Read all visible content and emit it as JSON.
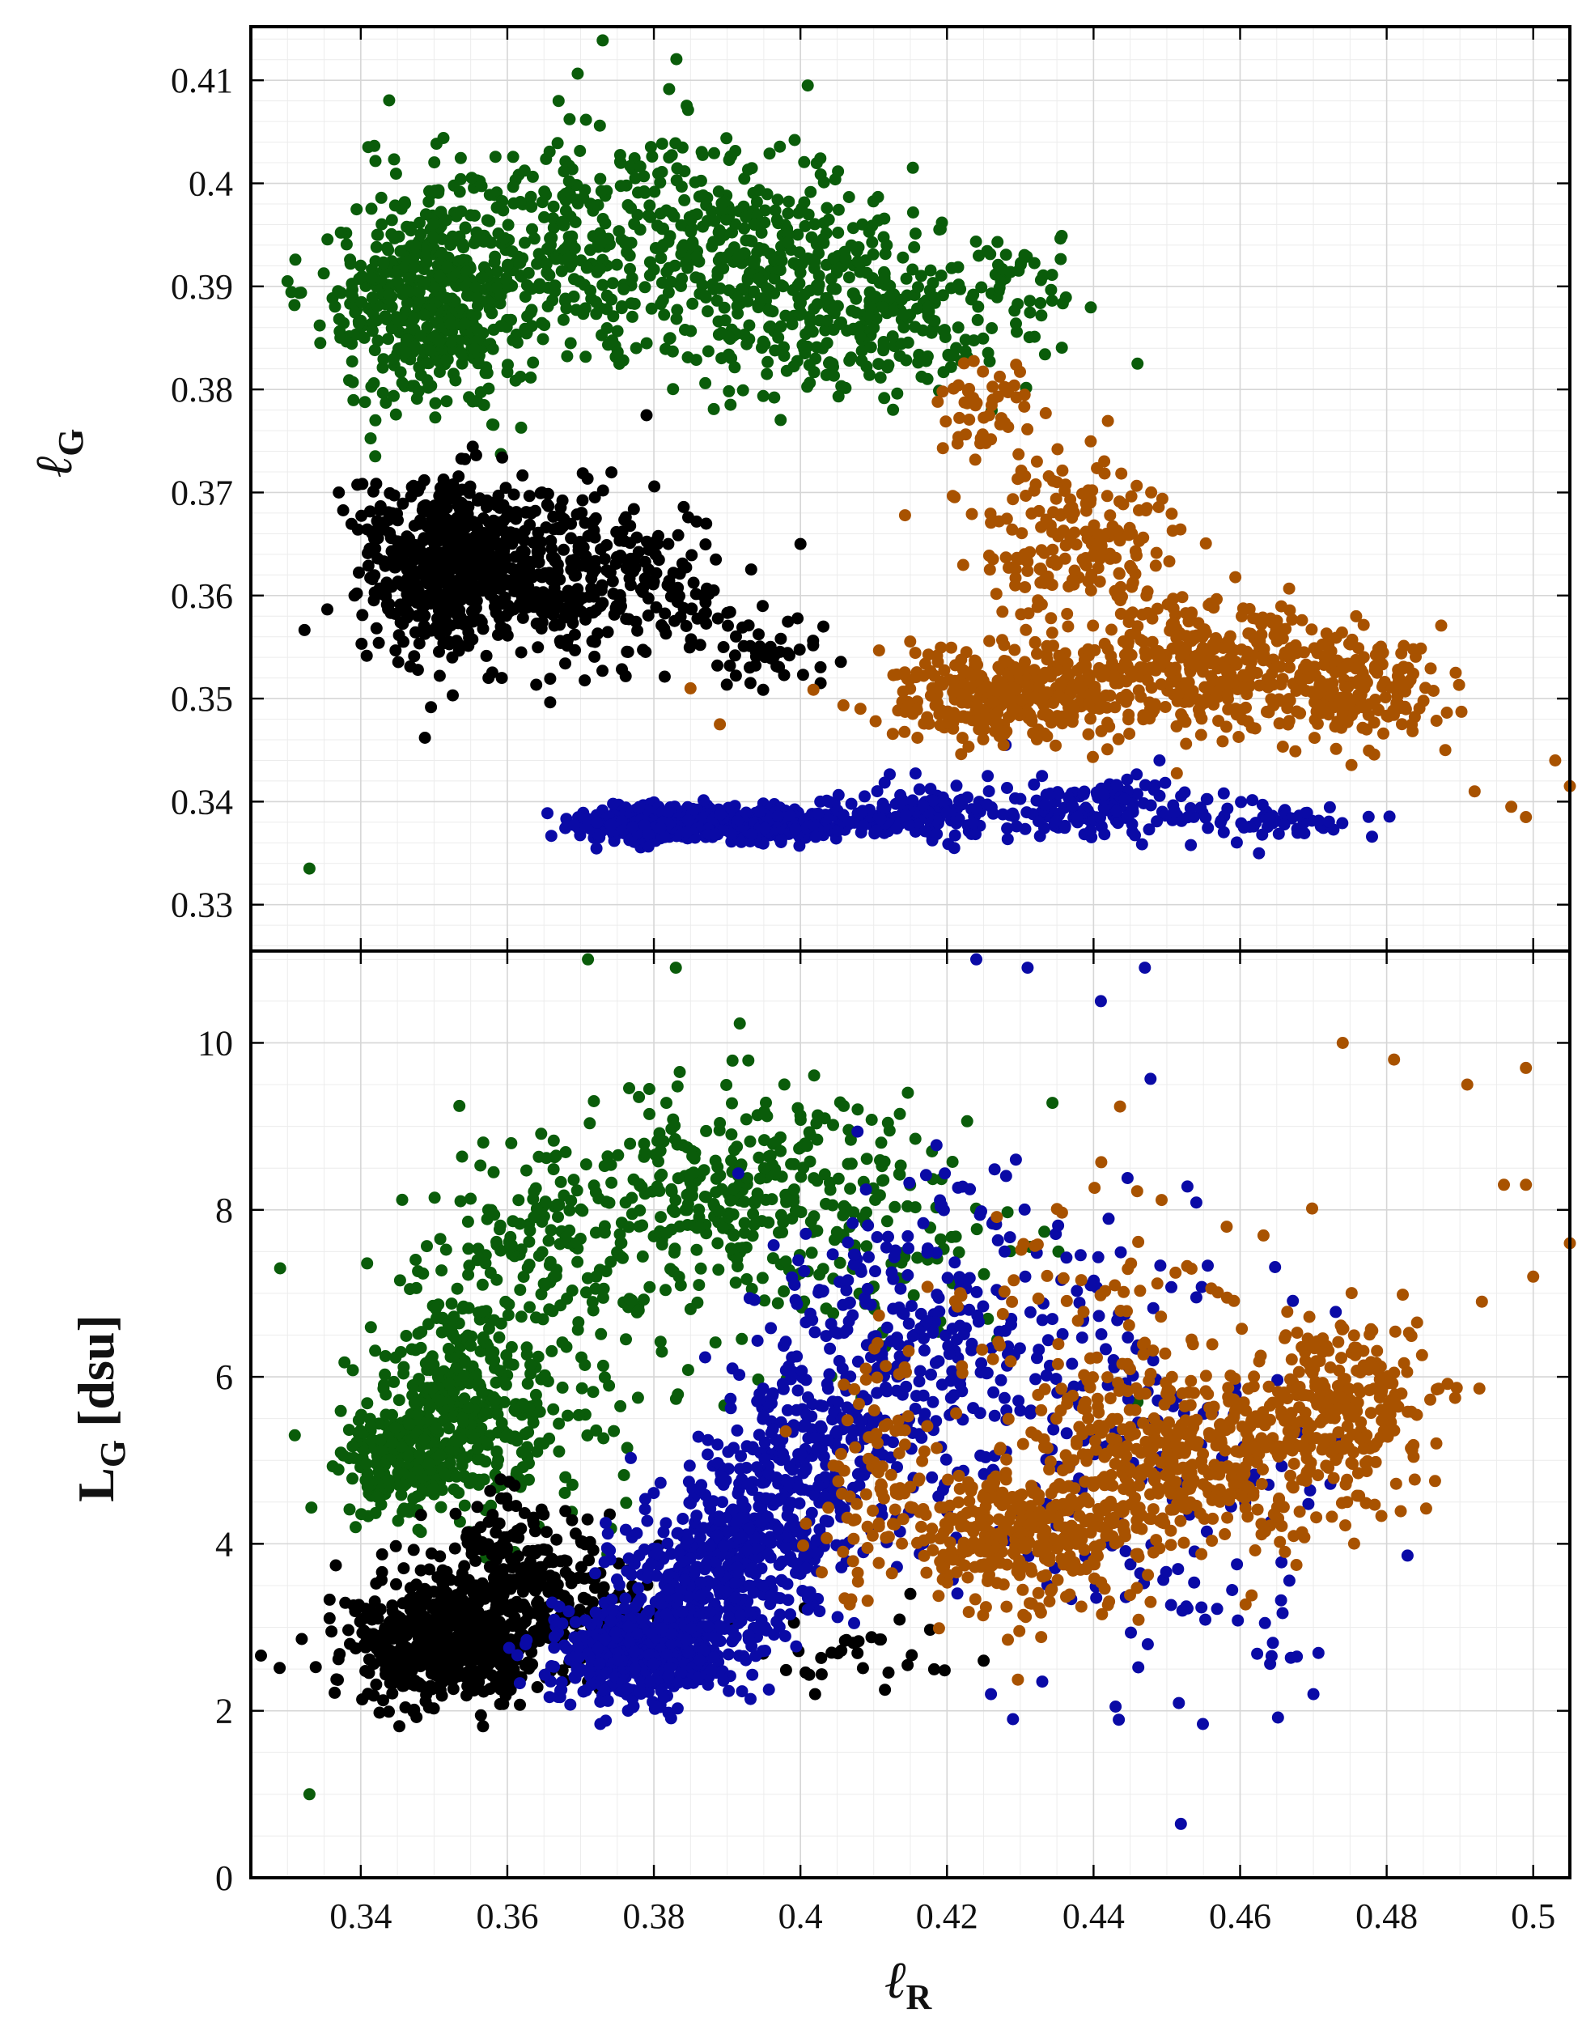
{
  "chart_data": [
    {
      "type": "scatter",
      "panel": "top",
      "title": "",
      "ylabel_base": "ℓ",
      "ylabel_sub": "G",
      "xlim": [
        0.325,
        0.505
      ],
      "ylim": [
        0.3255,
        0.4152
      ],
      "ymajor": 0.01,
      "yminor": 0.002,
      "xmajor": 0.02,
      "xminor": 0.005,
      "yticks": [
        0.33,
        0.34,
        0.35,
        0.36,
        0.37,
        0.38,
        0.39,
        0.4,
        0.41
      ],
      "ytick_labels": [
        "0.33",
        "0.34",
        "0.35",
        "0.36",
        "0.37",
        "0.38",
        "0.39",
        "0.4",
        "0.41"
      ],
      "grid": true,
      "series": [
        {
          "name": "green",
          "color": "#0a5c0a",
          "clusters": [
            {
              "center": [
                0.35,
                0.389
              ],
              "spread": [
                0.008,
                0.006
              ],
              "n": 520
            },
            {
              "center": [
                0.375,
                0.394
              ],
              "spread": [
                0.014,
                0.007
              ],
              "n": 380
            },
            {
              "center": [
                0.398,
                0.391
              ],
              "spread": [
                0.009,
                0.007
              ],
              "n": 260
            },
            {
              "center": [
                0.413,
                0.387
              ],
              "spread": [
                0.008,
                0.005
              ],
              "n": 160
            },
            {
              "center": [
                0.43,
                0.388
              ],
              "spread": [
                0.006,
                0.004
              ],
              "n": 50
            }
          ],
          "points": [
            [
              0.333,
              0.3335
            ],
            [
              0.401,
              0.4095
            ],
            [
              0.367,
              0.408
            ],
            [
              0.446,
              0.3825
            ],
            [
              0.33,
              0.3905
            ],
            [
              0.342,
              0.377
            ]
          ]
        },
        {
          "name": "black",
          "color": "#000000",
          "clusters": [
            {
              "center": [
                0.352,
                0.363
              ],
              "spread": [
                0.007,
                0.005
              ],
              "n": 600
            },
            {
              "center": [
                0.368,
                0.362
              ],
              "spread": [
                0.007,
                0.005
              ],
              "n": 220
            },
            {
              "center": [
                0.383,
                0.36
              ],
              "spread": [
                0.006,
                0.004
              ],
              "n": 90
            },
            {
              "center": [
                0.397,
                0.354
              ],
              "spread": [
                0.005,
                0.002
              ],
              "n": 40
            }
          ],
          "points": [
            [
              0.379,
              0.3775
            ],
            [
              0.4,
              0.365
            ],
            [
              0.337,
              0.37
            ]
          ]
        },
        {
          "name": "blue",
          "color": "#0a0aa6",
          "clusters": [
            {
              "center": [
                0.38,
                0.3378
              ],
              "spread": [
                0.006,
                0.001
              ],
              "n": 420
            },
            {
              "center": [
                0.398,
                0.3378
              ],
              "spread": [
                0.006,
                0.001
              ],
              "n": 240
            },
            {
              "center": [
                0.415,
                0.339
              ],
              "spread": [
                0.007,
                0.0015
              ],
              "n": 140
            },
            {
              "center": [
                0.44,
                0.339
              ],
              "spread": [
                0.01,
                0.0018
              ],
              "n": 150
            },
            {
              "center": [
                0.465,
                0.338
              ],
              "spread": [
                0.006,
                0.001
              ],
              "n": 50
            }
          ],
          "points": [
            [
              0.478,
              0.3366
            ],
            [
              0.449,
              0.344
            ],
            [
              0.428,
              0.3455
            ]
          ]
        },
        {
          "name": "orange",
          "color": "#a85200",
          "clusters": [
            {
              "center": [
                0.428,
                0.3505
              ],
              "spread": [
                0.01,
                0.0025
              ],
              "n": 330
            },
            {
              "center": [
                0.455,
                0.353
              ],
              "spread": [
                0.011,
                0.004
              ],
              "n": 360
            },
            {
              "center": [
                0.475,
                0.351
              ],
              "spread": [
                0.007,
                0.003
              ],
              "n": 200
            },
            {
              "center": [
                0.437,
                0.365
              ],
              "spread": [
                0.008,
                0.005
              ],
              "n": 200
            },
            {
              "center": [
                0.425,
                0.378
              ],
              "spread": [
                0.004,
                0.003
              ],
              "n": 50
            }
          ],
          "points": [
            [
              0.505,
              0.3415
            ],
            [
              0.503,
              0.344
            ],
            [
              0.499,
              0.3385
            ],
            [
              0.497,
              0.3395
            ],
            [
              0.492,
              0.341
            ],
            [
              0.488,
              0.345
            ],
            [
              0.389,
              0.3475
            ],
            [
              0.385,
              0.351
            ]
          ]
        }
      ]
    },
    {
      "type": "scatter",
      "panel": "bottom",
      "title": "",
      "xlabel_base": "ℓ",
      "xlabel_sub": "R",
      "ylabel_base": "L",
      "ylabel_sub": "G",
      "ylabel_suffix": " [dsu]",
      "xlim": [
        0.325,
        0.505
      ],
      "ylim": [
        0,
        11.1
      ],
      "ymajor": 2,
      "yminor": 0.5,
      "xmajor": 0.02,
      "xminor": 0.005,
      "xticks": [
        0.34,
        0.36,
        0.38,
        0.4,
        0.42,
        0.44,
        0.46,
        0.48,
        0.5
      ],
      "xtick_labels": [
        "0.34",
        "0.36",
        "0.38",
        "0.4",
        "0.42",
        "0.44",
        "0.46",
        "0.48",
        "0.5"
      ],
      "yticks": [
        0,
        2,
        4,
        6,
        8,
        10
      ],
      "ytick_labels": [
        "0",
        "2",
        "4",
        "6",
        "8",
        "10"
      ],
      "grid": true,
      "series": [
        {
          "name": "green",
          "color": "#0a5c0a",
          "clusters": [
            {
              "center": [
                0.345,
                5.0
              ],
              "spread": [
                0.004,
                0.35
              ],
              "n": 180
            },
            {
              "center": [
                0.353,
                5.6
              ],
              "spread": [
                0.007,
                0.7
              ],
              "n": 320
            },
            {
              "center": [
                0.365,
                7.0
              ],
              "spread": [
                0.013,
                1.2
              ],
              "n": 260
            },
            {
              "center": [
                0.39,
                8.2
              ],
              "spread": [
                0.011,
                0.8
              ],
              "n": 250
            },
            {
              "center": [
                0.41,
                7.8
              ],
              "spread": [
                0.012,
                1.0
              ],
              "n": 120
            }
          ],
          "points": [
            [
              0.333,
              1.0
            ],
            [
              0.427,
              4.1
            ],
            [
              0.446,
              5.7
            ],
            [
              0.371,
              11.0
            ],
            [
              0.383,
              10.9
            ],
            [
              0.329,
              7.3
            ],
            [
              0.331,
              5.3
            ]
          ]
        },
        {
          "name": "black",
          "color": "#000000",
          "clusters": [
            {
              "center": [
                0.352,
                2.9
              ],
              "spread": [
                0.008,
                0.45
              ],
              "n": 620
            },
            {
              "center": [
                0.362,
                3.8
              ],
              "spread": [
                0.007,
                0.45
              ],
              "n": 170
            },
            {
              "center": [
                0.375,
                3.0
              ],
              "spread": [
                0.006,
                0.4
              ],
              "n": 90
            },
            {
              "center": [
                0.405,
                2.7
              ],
              "spread": [
                0.009,
                0.3
              ],
              "n": 30
            }
          ],
          "points": [
            [
              0.425,
              2.6
            ],
            [
              0.415,
              3.4
            ],
            [
              0.402,
              2.2
            ],
            [
              0.336,
              2.95
            ]
          ]
        },
        {
          "name": "blue",
          "color": "#0a0aa6",
          "clusters": [
            {
              "center": [
                0.378,
                2.7
              ],
              "spread": [
                0.007,
                0.35
              ],
              "n": 500
            },
            {
              "center": [
                0.388,
                3.6
              ],
              "spread": [
                0.008,
                0.6
              ],
              "n": 380
            },
            {
              "center": [
                0.398,
                4.8
              ],
              "spread": [
                0.008,
                0.9
              ],
              "n": 300
            },
            {
              "center": [
                0.412,
                6.3
              ],
              "spread": [
                0.009,
                1.2
              ],
              "n": 220
            },
            {
              "center": [
                0.433,
                5.8
              ],
              "spread": [
                0.013,
                1.5
              ],
              "n": 200
            },
            {
              "center": [
                0.455,
                4.0
              ],
              "spread": [
                0.012,
                1.2
              ],
              "n": 80
            }
          ],
          "points": [
            [
              0.424,
              11.0
            ],
            [
              0.431,
              10.9
            ],
            [
              0.447,
              10.9
            ],
            [
              0.429,
              1.9
            ],
            [
              0.443,
              2.05
            ],
            [
              0.47,
              2.2
            ],
            [
              0.426,
              2.2
            ],
            [
              0.433,
              2.35
            ],
            [
              0.441,
              10.5
            ]
          ]
        },
        {
          "name": "orange",
          "color": "#a85200",
          "clusters": [
            {
              "center": [
                0.43,
                4.1
              ],
              "spread": [
                0.01,
                0.5
              ],
              "n": 350
            },
            {
              "center": [
                0.452,
                5.0
              ],
              "spread": [
                0.011,
                0.7
              ],
              "n": 400
            },
            {
              "center": [
                0.474,
                5.7
              ],
              "spread": [
                0.008,
                0.65
              ],
              "n": 250
            },
            {
              "center": [
                0.41,
                5.0
              ],
              "spread": [
                0.006,
                0.8
              ],
              "n": 80
            },
            {
              "center": [
                0.44,
                6.8
              ],
              "spread": [
                0.014,
                1.1
              ],
              "n": 90
            }
          ],
          "points": [
            [
              0.505,
              7.6
            ],
            [
              0.499,
              8.3
            ],
            [
              0.499,
              9.7
            ],
            [
              0.496,
              8.3
            ],
            [
              0.491,
              9.5
            ],
            [
              0.474,
              10.0
            ],
            [
              0.481,
              9.8
            ],
            [
              0.5,
              7.2
            ],
            [
              0.493,
              6.9
            ]
          ]
        }
      ]
    }
  ]
}
